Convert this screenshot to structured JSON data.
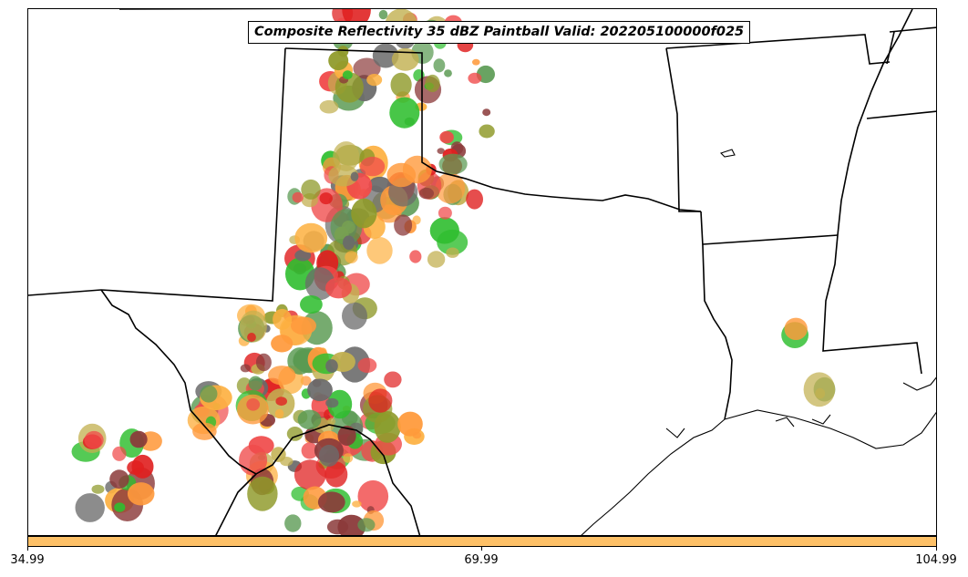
{
  "title": "Composite Reflectivity 35 dBZ Paintball Valid: 202205100000f025",
  "colorbar": {
    "color": "#fdc067",
    "ticks": [
      "34.99",
      "69.99",
      "104.99"
    ]
  },
  "paintball_colors": [
    "#f04a4a",
    "#8b3a3a",
    "#6b6b6b",
    "#2fbe2f",
    "#5a9a52",
    "#8f9a2a",
    "#c2b050",
    "#ff9a3c",
    "#e02020",
    "#fdb040"
  ],
  "map_layers": [
    "state-borders",
    "coastline",
    "reflectivity-paintballs"
  ]
}
